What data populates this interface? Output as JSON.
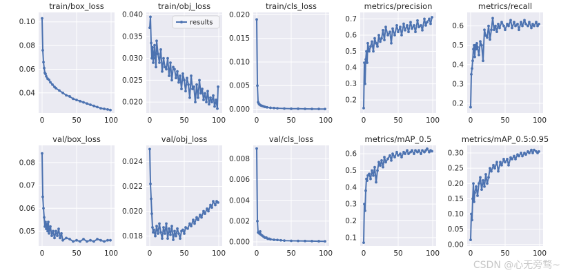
{
  "figure": {
    "legend_label": "results",
    "watermark": "CSDN @心无旁骛~"
  },
  "style": {
    "panel_bg": "#eaeaf2",
    "grid": "#ffffff",
    "line": "#4c72b0",
    "text": "#262626"
  },
  "chart_data": [
    {
      "type": "line",
      "title": "train/box_loss",
      "xlim": [
        -5,
        105
      ],
      "ylim": [
        0.023,
        0.108
      ],
      "xticks": [
        0,
        50,
        100
      ],
      "xtick_labels": [
        "0",
        "50",
        "100"
      ],
      "yticks": [
        0.04,
        0.06,
        0.08,
        0.1
      ],
      "ytick_labels": [
        "0.04",
        "0.06",
        "0.08",
        "0.10"
      ],
      "x": [
        0,
        1,
        2,
        3,
        4,
        5,
        6,
        8,
        10,
        12,
        15,
        18,
        20,
        25,
        30,
        35,
        40,
        45,
        50,
        55,
        60,
        65,
        70,
        75,
        80,
        85,
        90,
        95,
        99
      ],
      "y": [
        0.103,
        0.076,
        0.066,
        0.061,
        0.057,
        0.056,
        0.054,
        0.052,
        0.051,
        0.049,
        0.047,
        0.045,
        0.044,
        0.042,
        0.04,
        0.038,
        0.037,
        0.035,
        0.034,
        0.033,
        0.032,
        0.031,
        0.03,
        0.029,
        0.028,
        0.027,
        0.0265,
        0.026,
        0.0255
      ]
    },
    {
      "type": "line",
      "title": "train/obj_loss",
      "xlim": [
        -5,
        105
      ],
      "ylim": [
        0.0175,
        0.0405
      ],
      "xticks": [
        0,
        50,
        100
      ],
      "xtick_labels": [
        "0",
        "50",
        "100"
      ],
      "yticks": [
        0.02,
        0.025,
        0.03,
        0.035,
        0.04
      ],
      "ytick_labels": [
        "0.020",
        "0.025",
        "0.030",
        "0.035",
        "0.040"
      ],
      "legend": true,
      "x": [
        0,
        1,
        2,
        3,
        4,
        5,
        6,
        7,
        8,
        9,
        10,
        12,
        14,
        16,
        18,
        20,
        22,
        24,
        26,
        28,
        30,
        32,
        34,
        36,
        38,
        40,
        42,
        44,
        46,
        48,
        50,
        52,
        54,
        56,
        58,
        60,
        62,
        64,
        66,
        68,
        70,
        72,
        74,
        76,
        78,
        80,
        82,
        84,
        86,
        88,
        90,
        92,
        94,
        96,
        98,
        99
      ],
      "y": [
        0.037,
        0.0395,
        0.0335,
        0.03,
        0.0325,
        0.029,
        0.031,
        0.033,
        0.03,
        0.028,
        0.034,
        0.031,
        0.029,
        0.032,
        0.027,
        0.03,
        0.028,
        0.0275,
        0.03,
        0.026,
        0.029,
        0.025,
        0.028,
        0.0275,
        0.0255,
        0.027,
        0.0245,
        0.026,
        0.023,
        0.0265,
        0.025,
        0.0225,
        0.0255,
        0.024,
        0.021,
        0.026,
        0.023,
        0.0235,
        0.02,
        0.024,
        0.021,
        0.025,
        0.022,
        0.023,
        0.0205,
        0.022,
        0.02,
        0.0225,
        0.0195,
        0.021,
        0.02,
        0.0215,
        0.019,
        0.0205,
        0.0185,
        0.0235
      ]
    },
    {
      "type": "line",
      "title": "train/cls_loss",
      "xlim": [
        -5,
        105
      ],
      "ylim": [
        -0.0008,
        0.0205
      ],
      "xticks": [
        0,
        50,
        100
      ],
      "xtick_labels": [
        "0",
        "50",
        "100"
      ],
      "yticks": [
        0,
        0.005,
        0.01,
        0.015,
        0.02
      ],
      "ytick_labels": [
        "0.000",
        "0.005",
        "0.010",
        "0.015",
        "0.020"
      ],
      "x": [
        0,
        1,
        2,
        3,
        4,
        5,
        6,
        8,
        10,
        12,
        15,
        20,
        25,
        30,
        40,
        50,
        60,
        70,
        80,
        90,
        99
      ],
      "y": [
        0.019,
        0.005,
        0.0015,
        0.0012,
        0.001,
        0.0009,
        0.0008,
        0.0007,
        0.0006,
        0.0005,
        0.0004,
        0.0003,
        0.00025,
        0.0002,
        0.00015,
        0.0001,
        0.0001,
        8e-05,
        6e-05,
        5e-05,
        4e-05
      ]
    },
    {
      "type": "line",
      "title": "metrics/precision",
      "xlim": [
        -5,
        105
      ],
      "ylim": [
        0.12,
        0.74
      ],
      "xticks": [
        0,
        50,
        100
      ],
      "xtick_labels": [
        "0",
        "50",
        "100"
      ],
      "yticks": [
        0.2,
        0.3,
        0.4,
        0.5,
        0.6,
        0.7
      ],
      "ytick_labels": [
        "0.2",
        "0.3",
        "0.4",
        "0.5",
        "0.6",
        "0.7"
      ],
      "x": [
        0,
        1,
        2,
        3,
        4,
        5,
        6,
        8,
        10,
        12,
        14,
        16,
        18,
        20,
        22,
        24,
        26,
        28,
        30,
        32,
        35,
        38,
        40,
        42,
        45,
        48,
        50,
        53,
        55,
        58,
        60,
        63,
        65,
        68,
        70,
        73,
        75,
        78,
        80,
        83,
        85,
        88,
        90,
        92,
        95,
        97,
        99
      ],
      "y": [
        0.15,
        0.43,
        0.3,
        0.45,
        0.5,
        0.43,
        0.55,
        0.5,
        0.53,
        0.56,
        0.5,
        0.58,
        0.55,
        0.53,
        0.6,
        0.56,
        0.58,
        0.63,
        0.57,
        0.65,
        0.6,
        0.62,
        0.55,
        0.64,
        0.6,
        0.66,
        0.62,
        0.65,
        0.6,
        0.67,
        0.63,
        0.66,
        0.62,
        0.68,
        0.64,
        0.66,
        0.62,
        0.69,
        0.65,
        0.66,
        0.63,
        0.7,
        0.66,
        0.68,
        0.7,
        0.67,
        0.71
      ]
    },
    {
      "type": "line",
      "title": "metrics/recall",
      "xlim": [
        -5,
        105
      ],
      "ylim": [
        0.15,
        0.67
      ],
      "xticks": [
        0,
        50,
        100
      ],
      "xtick_labels": [
        "0",
        "50",
        "100"
      ],
      "yticks": [
        0.2,
        0.3,
        0.4,
        0.5,
        0.6
      ],
      "ytick_labels": [
        "0.2",
        "0.3",
        "0.4",
        "0.5",
        "0.6"
      ],
      "x": [
        0,
        1,
        2,
        3,
        4,
        5,
        6,
        7,
        8,
        9,
        10,
        12,
        14,
        16,
        18,
        20,
        22,
        24,
        26,
        28,
        30,
        32,
        34,
        36,
        38,
        40,
        42,
        45,
        48,
        50,
        53,
        55,
        58,
        60,
        63,
        65,
        68,
        70,
        73,
        75,
        78,
        80,
        83,
        85,
        88,
        90,
        92,
        95,
        97,
        99
      ],
      "y": [
        0.18,
        0.35,
        0.38,
        0.42,
        0.48,
        0.5,
        0.44,
        0.5,
        0.48,
        0.51,
        0.49,
        0.45,
        0.52,
        0.5,
        0.42,
        0.58,
        0.55,
        0.54,
        0.6,
        0.53,
        0.58,
        0.64,
        0.58,
        0.6,
        0.57,
        0.61,
        0.59,
        0.62,
        0.6,
        0.58,
        0.61,
        0.6,
        0.63,
        0.59,
        0.62,
        0.6,
        0.61,
        0.58,
        0.62,
        0.6,
        0.63,
        0.61,
        0.6,
        0.62,
        0.59,
        0.61,
        0.6,
        0.62,
        0.6,
        0.61
      ]
    },
    {
      "type": "line",
      "title": "val/box_loss",
      "xlim": [
        -5,
        105
      ],
      "ylim": [
        0.0435,
        0.0875
      ],
      "xticks": [
        0,
        50,
        100
      ],
      "xtick_labels": [
        "0",
        "50",
        "100"
      ],
      "yticks": [
        0.05,
        0.06,
        0.07,
        0.08
      ],
      "ytick_labels": [
        "0.05",
        "0.06",
        "0.07",
        "0.08"
      ],
      "x": [
        0,
        1,
        2,
        3,
        4,
        5,
        6,
        7,
        8,
        9,
        10,
        12,
        14,
        16,
        18,
        20,
        22,
        24,
        26,
        28,
        30,
        35,
        40,
        45,
        50,
        55,
        60,
        65,
        70,
        75,
        80,
        85,
        90,
        95,
        99
      ],
      "y": [
        0.084,
        0.065,
        0.06,
        0.056,
        0.052,
        0.054,
        0.051,
        0.053,
        0.05,
        0.054,
        0.049,
        0.052,
        0.048,
        0.05,
        0.047,
        0.05,
        0.048,
        0.051,
        0.047,
        0.049,
        0.046,
        0.047,
        0.0465,
        0.0455,
        0.046,
        0.0455,
        0.0465,
        0.0455,
        0.046,
        0.0455,
        0.0465,
        0.046,
        0.0455,
        0.046,
        0.046
      ]
    },
    {
      "type": "line",
      "title": "val/obj_loss",
      "xlim": [
        -5,
        105
      ],
      "ylim": [
        0.0172,
        0.0253
      ],
      "xticks": [
        0,
        50,
        100
      ],
      "xtick_labels": [
        "0",
        "50",
        "100"
      ],
      "yticks": [
        0.018,
        0.02,
        0.022,
        0.024
      ],
      "ytick_labels": [
        "0.018",
        "0.020",
        "0.022",
        "0.024"
      ],
      "x": [
        0,
        1,
        2,
        3,
        4,
        5,
        6,
        8,
        10,
        12,
        14,
        16,
        18,
        20,
        22,
        24,
        26,
        28,
        30,
        32,
        34,
        36,
        38,
        40,
        42,
        44,
        46,
        48,
        50,
        52,
        55,
        58,
        60,
        63,
        65,
        68,
        70,
        73,
        75,
        78,
        80,
        83,
        85,
        88,
        90,
        92,
        95,
        97,
        99
      ],
      "y": [
        0.025,
        0.0222,
        0.021,
        0.0198,
        0.0187,
        0.0183,
        0.0185,
        0.018,
        0.0188,
        0.0182,
        0.019,
        0.0183,
        0.0178,
        0.0187,
        0.0182,
        0.019,
        0.0178,
        0.0186,
        0.0181,
        0.0188,
        0.0177,
        0.0184,
        0.018,
        0.0186,
        0.0182,
        0.0178,
        0.0184,
        0.0185,
        0.0182,
        0.0187,
        0.0186,
        0.019,
        0.0188,
        0.0193,
        0.019,
        0.0195,
        0.0193,
        0.0197,
        0.0195,
        0.02,
        0.0198,
        0.0202,
        0.02,
        0.0205,
        0.0203,
        0.0208,
        0.0205,
        0.0208,
        0.0207
      ]
    },
    {
      "type": "line",
      "title": "val/cls_loss",
      "xlim": [
        -5,
        105
      ],
      "ylim": [
        -0.0004,
        0.0093
      ],
      "xticks": [
        0,
        50,
        100
      ],
      "xtick_labels": [
        "0",
        "50",
        "100"
      ],
      "yticks": [
        0,
        0.002,
        0.004,
        0.006,
        0.008
      ],
      "ytick_labels": [
        "0.000",
        "0.002",
        "0.004",
        "0.006",
        "0.008"
      ],
      "x": [
        0,
        1,
        2,
        3,
        4,
        5,
        6,
        8,
        10,
        12,
        14,
        16,
        18,
        20,
        25,
        30,
        35,
        40,
        50,
        60,
        70,
        80,
        90,
        99
      ],
      "y": [
        0.009,
        0.002,
        0.0009,
        0.0009,
        0.0008,
        0.001,
        0.0007,
        0.0006,
        0.0005,
        0.0004,
        0.0004,
        0.0003,
        0.0003,
        0.00025,
        0.0002,
        0.00018,
        0.00015,
        0.00012,
        0.0001,
        9e-05,
        8e-05,
        7e-05,
        6e-05,
        5e-05
      ]
    },
    {
      "type": "line",
      "title": "metrics/mAP_0.5",
      "xlim": [
        -5,
        105
      ],
      "ylim": [
        0.05,
        0.65
      ],
      "xticks": [
        0,
        50,
        100
      ],
      "xtick_labels": [
        "0",
        "50",
        "100"
      ],
      "yticks": [
        0.1,
        0.2,
        0.3,
        0.4,
        0.5,
        0.6
      ],
      "ytick_labels": [
        "0.1",
        "0.2",
        "0.3",
        "0.4",
        "0.5",
        "0.6"
      ],
      "x": [
        0,
        1,
        2,
        3,
        4,
        5,
        6,
        8,
        10,
        12,
        14,
        16,
        18,
        20,
        22,
        24,
        26,
        28,
        30,
        32,
        35,
        38,
        40,
        42,
        45,
        48,
        50,
        53,
        55,
        58,
        60,
        63,
        65,
        68,
        70,
        73,
        75,
        78,
        80,
        83,
        85,
        88,
        90,
        92,
        95,
        97,
        99
      ],
      "y": [
        0.07,
        0.3,
        0.26,
        0.38,
        0.45,
        0.44,
        0.47,
        0.48,
        0.45,
        0.5,
        0.47,
        0.52,
        0.43,
        0.5,
        0.55,
        0.53,
        0.56,
        0.52,
        0.58,
        0.55,
        0.57,
        0.59,
        0.56,
        0.6,
        0.58,
        0.61,
        0.59,
        0.6,
        0.58,
        0.61,
        0.6,
        0.62,
        0.6,
        0.61,
        0.62,
        0.6,
        0.62,
        0.61,
        0.62,
        0.6,
        0.62,
        0.61,
        0.62,
        0.63,
        0.61,
        0.62,
        0.615
      ]
    },
    {
      "type": "line",
      "title": "metrics/mAP_0.5:0.95",
      "xlim": [
        -5,
        105
      ],
      "ylim": [
        -0.005,
        0.325
      ],
      "xticks": [
        0,
        50,
        100
      ],
      "xtick_labels": [
        "0",
        "50",
        "100"
      ],
      "yticks": [
        0,
        0.05,
        0.1,
        0.15,
        0.2,
        0.25,
        0.3
      ],
      "ytick_labels": [
        "0.00",
        "0.05",
        "0.10",
        "0.15",
        "0.20",
        "0.25",
        "0.30"
      ],
      "x": [
        0,
        1,
        2,
        3,
        4,
        5,
        6,
        8,
        10,
        12,
        14,
        16,
        18,
        20,
        22,
        24,
        26,
        28,
        30,
        33,
        35,
        38,
        40,
        43,
        45,
        48,
        50,
        53,
        55,
        58,
        60,
        63,
        65,
        68,
        70,
        73,
        75,
        78,
        80,
        83,
        85,
        88,
        90,
        92,
        95,
        97,
        99
      ],
      "y": [
        0.015,
        0.1,
        0.08,
        0.15,
        0.2,
        0.14,
        0.17,
        0.19,
        0.16,
        0.2,
        0.22,
        0.18,
        0.21,
        0.19,
        0.23,
        0.2,
        0.22,
        0.25,
        0.24,
        0.26,
        0.25,
        0.27,
        0.24,
        0.27,
        0.26,
        0.28,
        0.27,
        0.28,
        0.26,
        0.285,
        0.28,
        0.29,
        0.28,
        0.295,
        0.29,
        0.3,
        0.29,
        0.3,
        0.295,
        0.305,
        0.3,
        0.31,
        0.3,
        0.31,
        0.305,
        0.3,
        0.305
      ]
    }
  ]
}
